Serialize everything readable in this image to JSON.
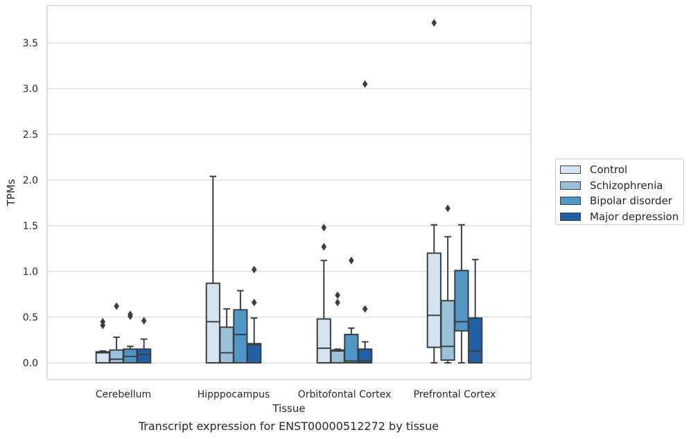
{
  "chart_data": {
    "type": "box",
    "xlabel": "Tissue",
    "ylabel": "TPMs",
    "caption": "Transcript expression for ENST00000512272 by tissue",
    "categories": [
      "Cerebellum",
      "Hipppocampus",
      "Orbitofontal Cortex",
      "Prefrontal Cortex"
    ],
    "ylim": [
      -0.18,
      3.92
    ],
    "yticks": [
      0.0,
      0.5,
      1.0,
      1.5,
      2.0,
      2.5,
      3.0,
      3.5
    ],
    "ytick_labels": [
      "0.0",
      "0.5",
      "1.0",
      "1.5",
      "2.0",
      "2.5",
      "3.0",
      "3.5"
    ],
    "grid": "horizontal",
    "legend_position": "right",
    "series": [
      {
        "name": "Control",
        "color": "#d3e4f3",
        "boxes": [
          {
            "whisker_low": 0.0,
            "q1": 0.0,
            "median": 0.11,
            "q3": 0.12,
            "whisker_high": 0.13,
            "outliers": [
              0.41,
              0.45
            ]
          },
          {
            "whisker_low": 0.0,
            "q1": 0.0,
            "median": 0.45,
            "q3": 0.87,
            "whisker_high": 2.04,
            "outliers": []
          },
          {
            "whisker_low": 0.0,
            "q1": 0.0,
            "median": 0.16,
            "q3": 0.48,
            "whisker_high": 1.12,
            "outliers": [
              1.27,
              1.48
            ]
          },
          {
            "whisker_low": 0.0,
            "q1": 0.17,
            "median": 0.52,
            "q3": 1.2,
            "whisker_high": 1.51,
            "outliers": [
              3.72
            ]
          }
        ]
      },
      {
        "name": "Schizophrenia",
        "color": "#9ac1dc",
        "boxes": [
          {
            "whisker_low": 0.0,
            "q1": 0.0,
            "median": 0.04,
            "q3": 0.14,
            "whisker_high": 0.28,
            "outliers": [
              0.62
            ]
          },
          {
            "whisker_low": 0.0,
            "q1": 0.0,
            "median": 0.11,
            "q3": 0.39,
            "whisker_high": 0.59,
            "outliers": []
          },
          {
            "whisker_low": 0.0,
            "q1": 0.0,
            "median": 0.13,
            "q3": 0.14,
            "whisker_high": 0.15,
            "outliers": [
              0.66,
              0.74
            ]
          },
          {
            "whisker_low": 0.0,
            "q1": 0.03,
            "median": 0.18,
            "q3": 0.68,
            "whisker_high": 1.38,
            "outliers": [
              1.69
            ]
          }
        ]
      },
      {
        "name": "Bipolar disorder",
        "color": "#5097c8",
        "boxes": [
          {
            "whisker_low": 0.0,
            "q1": 0.0,
            "median": 0.07,
            "q3": 0.15,
            "whisker_high": 0.18,
            "outliers": [
              0.51,
              0.53
            ]
          },
          {
            "whisker_low": 0.0,
            "q1": 0.0,
            "median": 0.31,
            "q3": 0.58,
            "whisker_high": 0.79,
            "outliers": []
          },
          {
            "whisker_low": 0.0,
            "q1": 0.0,
            "median": 0.02,
            "q3": 0.31,
            "whisker_high": 0.38,
            "outliers": [
              1.12
            ]
          },
          {
            "whisker_low": 0.0,
            "q1": 0.35,
            "median": 0.45,
            "q3": 1.01,
            "whisker_high": 1.51,
            "outliers": []
          }
        ]
      },
      {
        "name": "Major depression",
        "color": "#2260a4",
        "boxes": [
          {
            "whisker_low": 0.0,
            "q1": 0.0,
            "median": 0.09,
            "q3": 0.15,
            "whisker_high": 0.26,
            "outliers": [
              0.46
            ]
          },
          {
            "whisker_low": 0.0,
            "q1": 0.0,
            "median": 0.2,
            "q3": 0.21,
            "whisker_high": 0.49,
            "outliers": [
              0.66,
              1.02
            ]
          },
          {
            "whisker_low": 0.0,
            "q1": 0.0,
            "median": 0.02,
            "q3": 0.15,
            "whisker_high": 0.23,
            "outliers": [
              0.59,
              3.05
            ]
          },
          {
            "whisker_low": 0.0,
            "q1": 0.0,
            "median": 0.13,
            "q3": 0.49,
            "whisker_high": 1.13,
            "outliers": []
          }
        ]
      }
    ]
  }
}
